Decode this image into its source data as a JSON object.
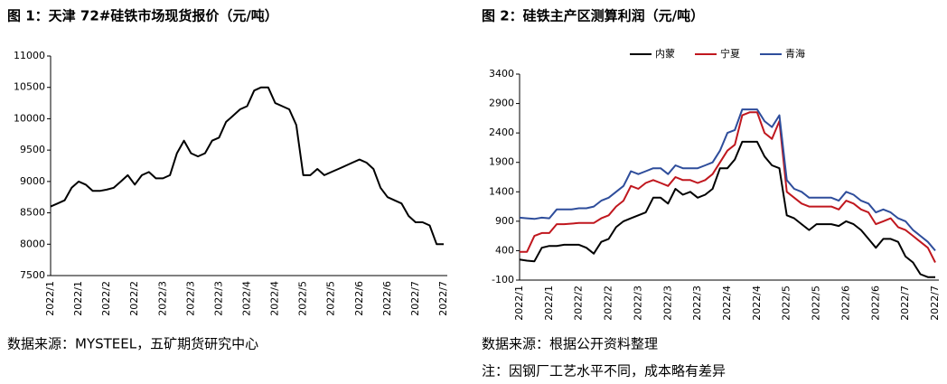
{
  "chart_data": [
    {
      "type": "line",
      "title": "图 1：天津 72#硅铁市场现货报价（元/吨）",
      "categories": [
        "2022/1",
        null,
        null,
        null,
        "2022/1",
        null,
        null,
        null,
        "2022/2",
        null,
        null,
        null,
        "2022/2",
        null,
        null,
        null,
        "2022/3",
        null,
        null,
        null,
        "2022/3",
        null,
        null,
        null,
        "2022/3",
        null,
        null,
        null,
        "2022/4",
        null,
        null,
        null,
        "2022/4",
        null,
        null,
        null,
        "2022/5",
        null,
        null,
        null,
        "2022/5",
        null,
        null,
        null,
        "2022/6",
        null,
        null,
        null,
        "2022/6",
        null,
        null,
        null,
        "2022/7",
        null,
        null,
        null,
        "2022/7"
      ],
      "values": [
        8600,
        8650,
        8700,
        8900,
        9000,
        8950,
        8850,
        8850,
        8870,
        8900,
        9000,
        9100,
        8950,
        9100,
        9150,
        9050,
        9050,
        9100,
        9450,
        9650,
        9450,
        9400,
        9450,
        9650,
        9700,
        9950,
        10050,
        10150,
        10200,
        10450,
        10500,
        10500,
        10250,
        10200,
        10150,
        9900,
        9100,
        9100,
        9200,
        9100,
        9150,
        9200,
        9250,
        9300,
        9350,
        9300,
        9200,
        8900,
        8750,
        8700,
        8650,
        8450,
        8350,
        8350,
        8300,
        8000,
        8000
      ],
      "color": "#000000",
      "ylim": [
        7500,
        11000
      ],
      "yticks": [
        7500,
        8000,
        8500,
        9000,
        9500,
        10000,
        10500,
        11000
      ],
      "source": "数据来源：MYSTEEL，五矿期货研究中心"
    },
    {
      "type": "line",
      "title": "图 2：硅铁主产区测算利润（元/吨）",
      "categories": [
        "2022/1",
        null,
        null,
        null,
        "2022/1",
        null,
        null,
        null,
        "2022/2",
        null,
        null,
        null,
        "2022/2",
        null,
        null,
        null,
        "2022/3",
        null,
        null,
        null,
        "2022/3",
        null,
        null,
        null,
        "2022/3",
        null,
        null,
        null,
        "2022/4",
        null,
        null,
        null,
        "2022/4",
        null,
        null,
        null,
        "2022/5",
        null,
        null,
        null,
        "2022/5",
        null,
        null,
        null,
        "2022/6",
        null,
        null,
        null,
        "2022/6",
        null,
        null,
        null,
        "2022/7",
        null,
        null,
        null,
        "2022/7"
      ],
      "series": [
        {
          "name": "内蒙",
          "color": "#000000",
          "values": [
            250,
            230,
            220,
            450,
            480,
            480,
            500,
            500,
            500,
            450,
            350,
            550,
            600,
            800,
            900,
            950,
            1000,
            1050,
            1300,
            1300,
            1200,
            1450,
            1350,
            1400,
            1300,
            1350,
            1450,
            1800,
            1800,
            1950,
            2250,
            2250,
            2250,
            2000,
            1850,
            1800,
            1000,
            950,
            850,
            750,
            850,
            850,
            850,
            820,
            900,
            850,
            750,
            600,
            450,
            600,
            600,
            550,
            300,
            200,
            0,
            -50,
            -50
          ]
        },
        {
          "name": "宁夏",
          "color": "#c0171e",
          "values": [
            380,
            380,
            650,
            700,
            700,
            850,
            850,
            860,
            870,
            870,
            870,
            950,
            1000,
            1150,
            1250,
            1500,
            1450,
            1550,
            1600,
            1550,
            1500,
            1650,
            1600,
            1600,
            1550,
            1600,
            1700,
            1900,
            2100,
            2200,
            2700,
            2750,
            2750,
            2400,
            2300,
            2600,
            1400,
            1300,
            1200,
            1150,
            1150,
            1150,
            1150,
            1100,
            1250,
            1200,
            1100,
            1050,
            850,
            900,
            950,
            800,
            750,
            650,
            550,
            450,
            200
          ]
        },
        {
          "name": "青海",
          "color": "#2e4d9b",
          "values": [
            960,
            950,
            940,
            960,
            950,
            1100,
            1100,
            1100,
            1120,
            1120,
            1150,
            1250,
            1300,
            1400,
            1500,
            1750,
            1700,
            1750,
            1800,
            1800,
            1700,
            1850,
            1800,
            1800,
            1800,
            1850,
            1900,
            2100,
            2400,
            2450,
            2800,
            2800,
            2800,
            2600,
            2500,
            2700,
            1600,
            1450,
            1400,
            1300,
            1300,
            1300,
            1300,
            1250,
            1400,
            1350,
            1250,
            1200,
            1050,
            1100,
            1050,
            950,
            900,
            750,
            650,
            550,
            400
          ]
        }
      ],
      "ylim": [
        -100,
        3400
      ],
      "yticks": [
        -100,
        400,
        900,
        1400,
        1900,
        2400,
        2900,
        3400
      ],
      "legend": "top",
      "source": "数据来源：根据公开资料整理",
      "note": "注：因钢厂工艺水平不同，成本略有差异"
    }
  ]
}
